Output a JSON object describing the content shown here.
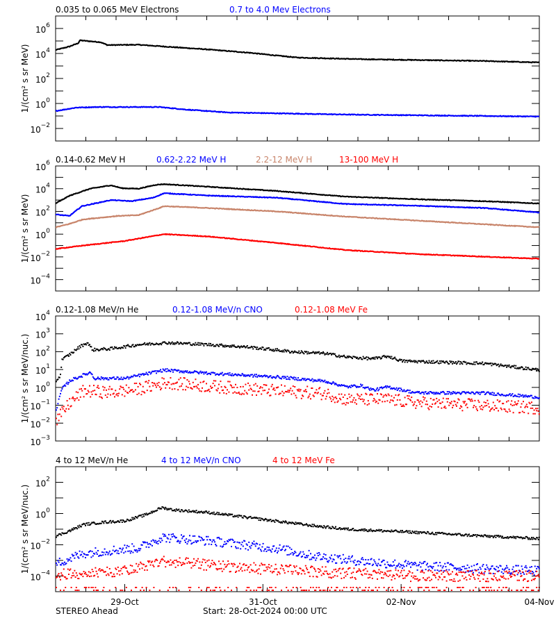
{
  "chart_data": [
    {
      "type": "line",
      "ylabel": "1/(cm² s sr MeV)",
      "yscale": "log",
      "ylim": [
        0.001,
        10000000
      ],
      "ytick_exponents": [
        6,
        4,
        2,
        0,
        -2
      ],
      "xlim_days": [
        0,
        7
      ],
      "series": [
        {
          "name": "0.035 to 0.065 MeV Electrons",
          "color": "#000000",
          "style": "line",
          "points": [
            [
              0,
              19000
            ],
            [
              0.2,
              36000
            ],
            [
              0.33,
              68000
            ],
            [
              0.35,
              112000
            ],
            [
              0.65,
              80000
            ],
            [
              0.75,
              47000
            ],
            [
              1.2,
              50000
            ],
            [
              1.6,
              35000
            ],
            [
              2.2,
              21000
            ],
            [
              2.8,
              11500
            ],
            [
              3.2,
              6800
            ],
            [
              3.5,
              4700
            ],
            [
              4.4,
              3500
            ],
            [
              6.2,
              2500
            ],
            [
              7,
              1900
            ]
          ]
        },
        {
          "name": "0.7 to 4.0 Mev Electrons",
          "color": "#0000ff",
          "style": "line",
          "points": [
            [
              0,
              0.25
            ],
            [
              0.3,
              0.47
            ],
            [
              0.6,
              0.52
            ],
            [
              1.5,
              0.52
            ],
            [
              1.9,
              0.32
            ],
            [
              2.5,
              0.19
            ],
            [
              4.2,
              0.13
            ],
            [
              7,
              0.09
            ]
          ]
        }
      ]
    },
    {
      "type": "line",
      "ylabel": "1/(cm² s sr MeV)",
      "yscale": "log",
      "ylim": [
        1e-05,
        1000000
      ],
      "ytick_exponents": [
        6,
        4,
        2,
        0,
        -2,
        -4
      ],
      "xlim_days": [
        0,
        7
      ],
      "series": [
        {
          "name": "0.14-0.62 MeV H",
          "color": "#000000",
          "style": "line",
          "points": [
            [
              0,
              500
            ],
            [
              0.2,
              2400
            ],
            [
              0.5,
              10000
            ],
            [
              0.8,
              20000
            ],
            [
              0.96,
              11000
            ],
            [
              1.2,
              10000
            ],
            [
              1.45,
              22000
            ],
            [
              1.57,
              25000
            ],
            [
              2.2,
              15000
            ],
            [
              3.2,
              6300
            ],
            [
              4.2,
              2000
            ],
            [
              5.2,
              1200
            ],
            [
              6.2,
              800
            ],
            [
              7,
              500
            ]
          ]
        },
        {
          "name": "0.62-2.22 MeV H",
          "color": "#0000ff",
          "style": "line",
          "points": [
            [
              0,
              54
            ],
            [
              0.2,
              40
            ],
            [
              0.38,
              290
            ],
            [
              0.8,
              1000
            ],
            [
              1.1,
              800
            ],
            [
              1.41,
              1600
            ],
            [
              1.57,
              4000
            ],
            [
              2.2,
              2500
            ],
            [
              3.2,
              1600
            ],
            [
              4.2,
              450
            ],
            [
              5.2,
              320
            ],
            [
              6.2,
              200
            ],
            [
              7,
              80
            ]
          ]
        },
        {
          "name": "2.2-12 MeV H",
          "color": "#c8846a",
          "style": "line",
          "points": [
            [
              0,
              4
            ],
            [
              0.2,
              8
            ],
            [
              0.4,
              20
            ],
            [
              0.9,
              40
            ],
            [
              1.2,
              47
            ],
            [
              1.5,
              200
            ],
            [
              1.57,
              290
            ],
            [
              2.2,
              200
            ],
            [
              3.2,
              100
            ],
            [
              4.2,
              35
            ],
            [
              5.2,
              16
            ],
            [
              7,
              4
            ]
          ]
        },
        {
          "name": "13-100 MeV H",
          "color": "#ff0000",
          "style": "line",
          "points": [
            [
              0,
              0.05
            ],
            [
              0.4,
              0.1
            ],
            [
              1.0,
              0.25
            ],
            [
              1.57,
              1.0
            ],
            [
              2.2,
              0.63
            ],
            [
              3.2,
              0.17
            ],
            [
              4.2,
              0.04
            ],
            [
              5.2,
              0.018
            ],
            [
              7,
              0.0068
            ]
          ]
        }
      ]
    },
    {
      "type": "scatter",
      "ylabel": "1/(cm² s sr MeV/nuc.)",
      "yscale": "log",
      "ylim": [
        0.001,
        10000
      ],
      "ytick_exponents": [
        4,
        3,
        2,
        1,
        0,
        -1,
        -2,
        -3
      ],
      "xlim_days": [
        0,
        7
      ],
      "series": [
        {
          "name": "0.12-1.08 MeV/n He",
          "color": "#000000",
          "style": "dots",
          "points": [
            [
              0,
              2.4
            ],
            [
              0.06,
              4.5
            ],
            [
              0.08,
              35
            ],
            [
              0.2,
              72
            ],
            [
              0.35,
              200
            ],
            [
              0.45,
              316
            ],
            [
              0.53,
              126
            ],
            [
              0.8,
              148
            ],
            [
              1.2,
              250
            ],
            [
              1.6,
              316
            ],
            [
              2.2,
              250
            ],
            [
              2.8,
              178
            ],
            [
              3.4,
              100
            ],
            [
              3.9,
              79
            ],
            [
              4.2,
              50
            ],
            [
              4.6,
              40
            ],
            [
              4.8,
              56
            ],
            [
              5.0,
              30
            ],
            [
              6.2,
              22
            ],
            [
              7,
              9.3
            ]
          ]
        },
        {
          "name": "0.12-1.08 MeV/n CNO",
          "color": "#0000ff",
          "style": "dots",
          "points": [
            [
              0.0,
              0.056
            ],
            [
              0.08,
              0.8
            ],
            [
              0.2,
              2.4
            ],
            [
              0.4,
              5
            ],
            [
              0.5,
              7
            ],
            [
              0.55,
              3.2
            ],
            [
              1.0,
              3.2
            ],
            [
              1.56,
              9.3
            ],
            [
              2.2,
              6.3
            ],
            [
              3.2,
              3.8
            ],
            [
              3.9,
              2.2
            ],
            [
              4.2,
              1.07
            ],
            [
              4.4,
              1.26
            ],
            [
              4.6,
              0.7
            ],
            [
              4.8,
              1.07
            ],
            [
              5.2,
              0.5
            ],
            [
              6.2,
              0.48
            ],
            [
              7,
              0.28
            ]
          ]
        },
        {
          "name": "0.12-1.08 MeV Fe",
          "color": "#ff0000",
          "style": "dots",
          "points": [
            [
              0.0,
              0.013
            ],
            [
              0.2,
              0.14
            ],
            [
              0.4,
              0.63
            ],
            [
              0.8,
              0.52
            ],
            [
              1.2,
              0.83
            ],
            [
              1.6,
              1.86
            ],
            [
              2.2,
              1.17
            ],
            [
              3.2,
              0.63
            ],
            [
              3.9,
              0.45
            ],
            [
              4.2,
              0.21
            ],
            [
              4.8,
              0.21
            ],
            [
              5.2,
              0.14
            ],
            [
              7,
              0.07
            ]
          ]
        }
      ]
    },
    {
      "type": "scatter",
      "ylabel": "1/(cm² s sr MeV/nuc.)",
      "yscale": "log",
      "ylim": [
        1e-05,
        1000
      ],
      "ytick_exponents": [
        2,
        0,
        -2,
        -4
      ],
      "xlim_days": [
        0,
        7
      ],
      "series": [
        {
          "name": "4 to 12 MeV/n He",
          "color": "#000000",
          "style": "dots",
          "points": [
            [
              0,
              0.036
            ],
            [
              0.2,
              0.08
            ],
            [
              0.4,
              0.2
            ],
            [
              0.7,
              0.28
            ],
            [
              1.0,
              0.34
            ],
            [
              1.3,
              0.85
            ],
            [
              1.53,
              2.4
            ],
            [
              1.7,
              1.7
            ],
            [
              2.2,
              1.17
            ],
            [
              3.2,
              0.32
            ],
            [
              3.7,
              0.17
            ],
            [
              4.2,
              0.1
            ],
            [
              5.2,
              0.063
            ],
            [
              6.2,
              0.036
            ],
            [
              7,
              0.025
            ]
          ]
        },
        {
          "name": "4 to 12 MeV/n CNO",
          "color": "#0000ff",
          "style": "dots",
          "points": [
            [
              0,
              0.00063
            ],
            [
              0.4,
              0.0028
            ],
            [
              0.7,
              0.004
            ],
            [
              1.2,
              0.0063
            ],
            [
              1.53,
              0.03
            ],
            [
              2.2,
              0.018
            ],
            [
              3.2,
              0.0058
            ],
            [
              3.7,
              0.002
            ],
            [
              4.2,
              0.0011
            ],
            [
              5.2,
              0.00045
            ],
            [
              7,
              0.00021
            ]
          ]
        },
        {
          "name": "4 to 12 MeV Fe",
          "color": "#ff0000",
          "style": "dots",
          "points": [
            [
              0,
              0.00012
            ],
            [
              0.5,
              0.00017
            ],
            [
              1.0,
              0.0002
            ],
            [
              1.53,
              0.0009
            ],
            [
              2.2,
              0.0005
            ],
            [
              3.2,
              0.00025
            ],
            [
              4.2,
              0.00015
            ],
            [
              5.2,
              0.0001
            ],
            [
              7,
              0.0001
            ]
          ]
        }
      ]
    }
  ],
  "x_axis": {
    "ticks": [
      {
        "day": 1,
        "label": "29-Oct"
      },
      {
        "day": 3,
        "label": "31-Oct"
      },
      {
        "day": 5,
        "label": "02-Nov"
      },
      {
        "day": 7,
        "label": "04-Nov"
      }
    ]
  },
  "footer": {
    "spacecraft": "STEREO Ahead",
    "start": "Start: 28-Oct-2024 00:00 UTC"
  }
}
